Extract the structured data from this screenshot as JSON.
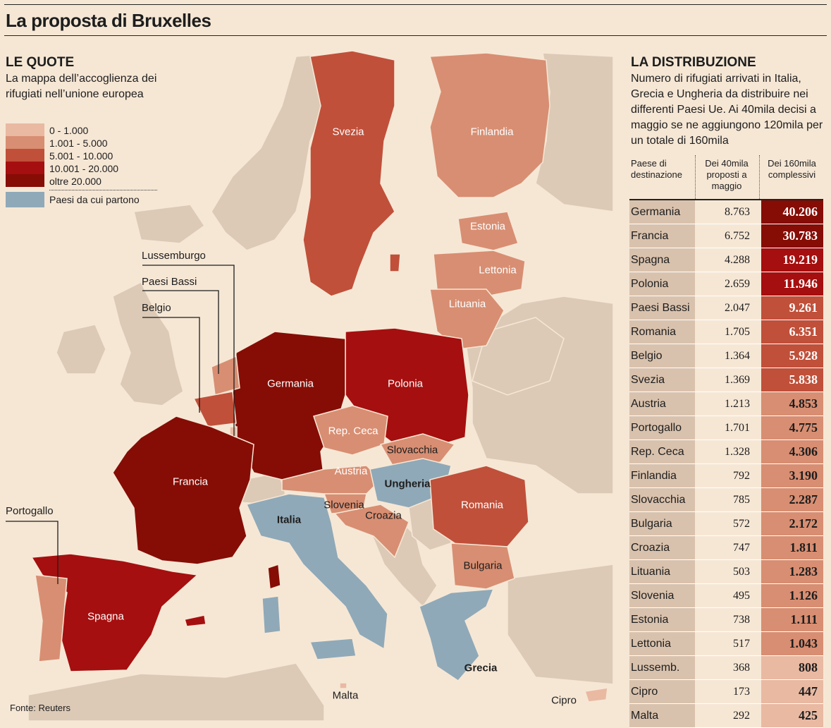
{
  "title": "La proposta di Bruxelles",
  "quote": {
    "heading": "LE QUOTE",
    "subtitle": "La mappa dell’accoglienza dei rifugiati nell’unione europea"
  },
  "legend": [
    {
      "label": "0 - 1.000",
      "color": "#e9b9a2"
    },
    {
      "label": "1.001 - 5.000",
      "color": "#d88e72"
    },
    {
      "label": "5.001 - 10.000",
      "color": "#c0503a"
    },
    {
      "label": "10.001 - 20.000",
      "color": "#a50f0f"
    },
    {
      "label": "oltre 20.000",
      "color": "#850d05"
    }
  ],
  "legend_origin": {
    "label": "Paesi da cui partono",
    "color": "#8fa9b8"
  },
  "colors": {
    "background": "#f6e7d5",
    "land": "#dccab6",
    "origin": "#8fa9b8",
    "name_cell": "#d9c2ad"
  },
  "map_labels": {
    "svezia": "Svezia",
    "finlandia": "Finlandia",
    "estonia": "Estonia",
    "lettonia": "Lettonia",
    "lituania": "Lituania",
    "germania": "Germania",
    "polonia": "Polonia",
    "rep_ceca": "Rep. Ceca",
    "slovacchia": "Slovacchia",
    "austria": "Austria",
    "ungheria": "Ungheria",
    "slovenia": "Slovenia",
    "croazia": "Croazia",
    "romania": "Romania",
    "bulgaria": "Bulgaria",
    "francia": "Francia",
    "italia": "Italia",
    "spagna": "Spagna",
    "grecia": "Grecia",
    "malta": "Malta",
    "cipro": "Cipro"
  },
  "callouts": {
    "lussemburgo": "Lussemburgo",
    "paesi_bassi": "Paesi Bassi",
    "belgio": "Belgio",
    "portogallo": "Portogallo"
  },
  "source": "Fonte: Reuters",
  "distribuzione": {
    "heading": "LA DISTRIBUZIONE",
    "description": "Numero di rifugiati arrivati in Italia, Grecia e Ungheria da distribuire nei differenti Paesi Ue. Ai 40mila decisi a maggio se ne aggiungono 120mila per un totale di 160mila",
    "col_country": "Paese di destinazione",
    "col_may": "Dei 40mila proposti a maggio",
    "col_total": "Dei 160mila complessivi",
    "rows": [
      {
        "country": "Germania",
        "may": "8.763",
        "total": "40.206",
        "value": 40206
      },
      {
        "country": "Francia",
        "may": "6.752",
        "total": "30.783",
        "value": 30783
      },
      {
        "country": "Spagna",
        "may": "4.288",
        "total": "19.219",
        "value": 19219
      },
      {
        "country": "Polonia",
        "may": "2.659",
        "total": "11.946",
        "value": 11946
      },
      {
        "country": "Paesi Bassi",
        "may": "2.047",
        "total": "9.261",
        "value": 9261
      },
      {
        "country": "Romania",
        "may": "1.705",
        "total": "6.351",
        "value": 6351
      },
      {
        "country": "Belgio",
        "may": "1.364",
        "total": "5.928",
        "value": 5928
      },
      {
        "country": "Svezia",
        "may": "1.369",
        "total": "5.838",
        "value": 5838
      },
      {
        "country": "Austria",
        "may": "1.213",
        "total": "4.853",
        "value": 4853
      },
      {
        "country": "Portogallo",
        "may": "1.701",
        "total": "4.775",
        "value": 4775
      },
      {
        "country": "Rep. Ceca",
        "may": "1.328",
        "total": "4.306",
        "value": 4306
      },
      {
        "country": "Finlandia",
        "may": "792",
        "total": "3.190",
        "value": 3190
      },
      {
        "country": "Slovacchia",
        "may": "785",
        "total": "2.287",
        "value": 2287
      },
      {
        "country": "Bulgaria",
        "may": "572",
        "total": "2.172",
        "value": 2172
      },
      {
        "country": "Croazia",
        "may": "747",
        "total": "1.811",
        "value": 1811
      },
      {
        "country": "Lituania",
        "may": "503",
        "total": "1.283",
        "value": 1283
      },
      {
        "country": "Slovenia",
        "may": "495",
        "total": "1.126",
        "value": 1126
      },
      {
        "country": "Estonia",
        "may": "738",
        "total": "1.111",
        "value": 1111
      },
      {
        "country": "Lettonia",
        "may": "517",
        "total": "1.043",
        "value": 1043
      },
      {
        "country": "Lussemb.",
        "may": "368",
        "total": "808",
        "value": 808
      },
      {
        "country": "Cipro",
        "may": "173",
        "total": "447",
        "value": 447
      },
      {
        "country": "Malta",
        "may": "292",
        "total": "425",
        "value": 425
      }
    ]
  }
}
